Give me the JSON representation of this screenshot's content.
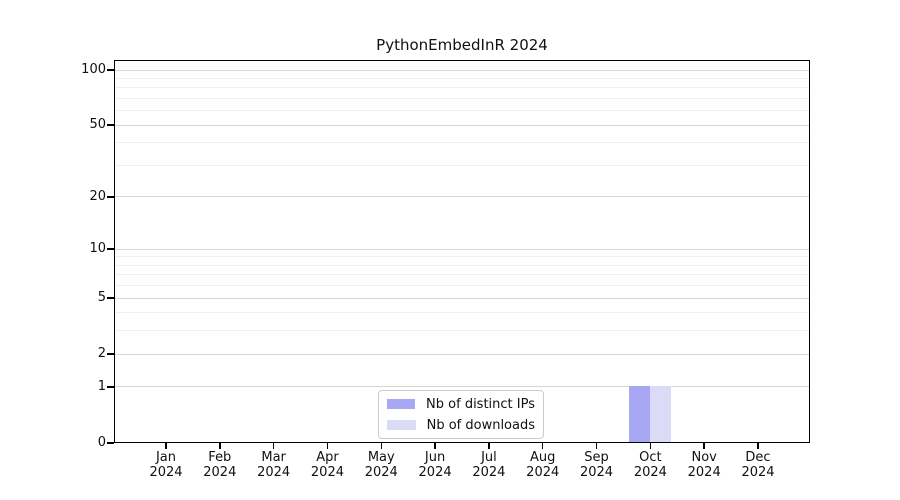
{
  "chart_data": {
    "type": "bar",
    "title": "PythonEmbedInR 2024",
    "categories": [
      "Jan",
      "Feb",
      "Mar",
      "Apr",
      "May",
      "Jun",
      "Jul",
      "Aug",
      "Sep",
      "Oct",
      "Nov",
      "Dec"
    ],
    "x_year_label": "2024",
    "series": [
      {
        "name": "Nb of distinct IPs",
        "color": "#a7a7f3",
        "values": [
          0,
          0,
          0,
          0,
          0,
          0,
          0,
          0,
          0,
          1,
          0,
          0
        ]
      },
      {
        "name": "Nb of downloads",
        "color": "#dbdbf8",
        "values": [
          0,
          0,
          0,
          0,
          0,
          0,
          0,
          0,
          0,
          1,
          0,
          0
        ]
      }
    ],
    "y_axis": {
      "scale": "log1p",
      "tick_values": [
        0,
        1,
        2,
        5,
        10,
        20,
        50,
        100
      ],
      "minor_tick_values": [
        3,
        4,
        6,
        7,
        8,
        9,
        30,
        40,
        60,
        70,
        80,
        90
      ],
      "top_value": 100
    },
    "grid": "horizontal",
    "legend_position": "bottom-center",
    "colors": {
      "grid_major": "#d6d6d6",
      "grid_minor": "#efefef",
      "axis": "#000000",
      "text": "#111111",
      "background": "#ffffff"
    }
  }
}
